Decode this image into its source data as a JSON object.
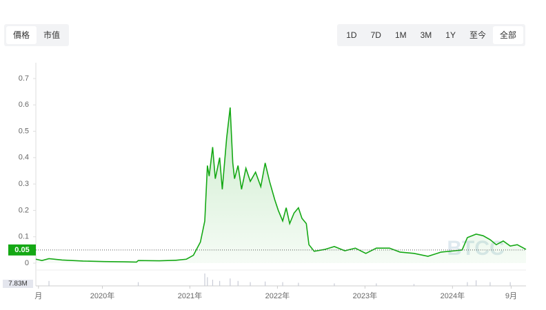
{
  "tabs": [
    "價格",
    "市值"
  ],
  "ranges": [
    "1D",
    "7D",
    "1M",
    "3M",
    "1Y",
    "至今",
    "全部"
  ],
  "selected_range": 6,
  "chart_data": {
    "type": "line",
    "x": [
      2019.24,
      2019.31,
      2019.39,
      2019.54,
      2019.78,
      2020.02,
      2020.25,
      2020.39,
      2020.41,
      2020.65,
      2020.84,
      2020.96,
      2021.04,
      2021.12,
      2021.17,
      2021.2,
      2021.22,
      2021.26,
      2021.29,
      2021.34,
      2021.37,
      2021.42,
      2021.46,
      2021.49,
      2021.51,
      2021.55,
      2021.59,
      2021.64,
      2021.69,
      2021.75,
      2021.81,
      2021.86,
      2021.91,
      2021.97,
      2022.01,
      2022.06,
      2022.1,
      2022.14,
      2022.19,
      2022.24,
      2022.28,
      2022.33,
      2022.36,
      2022.42,
      2022.54,
      2022.65,
      2022.77,
      2022.89,
      2023.01,
      2023.13,
      2023.28,
      2023.4,
      2023.56,
      2023.72,
      2023.87,
      2024.03,
      2024.11,
      2024.17,
      2024.27,
      2024.35,
      2024.43,
      2024.5,
      2024.58,
      2024.66,
      2024.74,
      2024.84
    ],
    "series": [
      {
        "color": "#14a814",
        "values": [
          0.015,
          0.01,
          0.017,
          0.012,
          0.008,
          0.006,
          0.005,
          0.004,
          0.01,
          0.009,
          0.011,
          0.015,
          0.03,
          0.08,
          0.16,
          0.37,
          0.33,
          0.44,
          0.32,
          0.4,
          0.28,
          0.475,
          0.59,
          0.38,
          0.32,
          0.37,
          0.28,
          0.36,
          0.31,
          0.345,
          0.29,
          0.38,
          0.31,
          0.24,
          0.2,
          0.16,
          0.21,
          0.15,
          0.19,
          0.21,
          0.17,
          0.15,
          0.07,
          0.045,
          0.052,
          0.063,
          0.047,
          0.057,
          0.037,
          0.057,
          0.057,
          0.042,
          0.037,
          0.026,
          0.042,
          0.047,
          0.05,
          0.097,
          0.11,
          0.104,
          0.089,
          0.07,
          0.084,
          0.065,
          0.07,
          0.052
        ]
      }
    ],
    "current_price": 0.05,
    "volume_label": "7.83M",
    "volume": {
      "x": [
        2019.39,
        2020.41,
        2021.17,
        2021.2,
        2021.26,
        2021.34,
        2021.46,
        2021.55,
        2021.69,
        2021.86,
        2022.06,
        2022.24,
        2022.65,
        2023.13,
        2023.56,
        2024.17,
        2024.27,
        2024.43,
        2024.66
      ],
      "values": [
        0.4,
        0.3,
        1.0,
        0.7,
        0.5,
        0.4,
        0.6,
        0.4,
        0.3,
        0.35,
        0.3,
        0.25,
        0.2,
        0.2,
        0.15,
        0.3,
        0.45,
        0.3,
        0.3
      ]
    },
    "watermark": "BTCC",
    "xlim": [
      2019.24,
      2024.84
    ],
    "xticks": [
      {
        "value": 2019.27,
        "label": "月"
      },
      {
        "value": 2020,
        "label": "2020年"
      },
      {
        "value": 2021,
        "label": "2021年"
      },
      {
        "value": 2022,
        "label": "2022年"
      },
      {
        "value": 2023,
        "label": "2023年"
      },
      {
        "value": 2024,
        "label": "2024年"
      },
      {
        "value": 2024.67,
        "label": "9月"
      }
    ],
    "ylim": [
      0,
      0.76
    ],
    "yticks": [
      0,
      0.1,
      0.2,
      0.3,
      0.4,
      0.5,
      0.6,
      0.7
    ]
  }
}
